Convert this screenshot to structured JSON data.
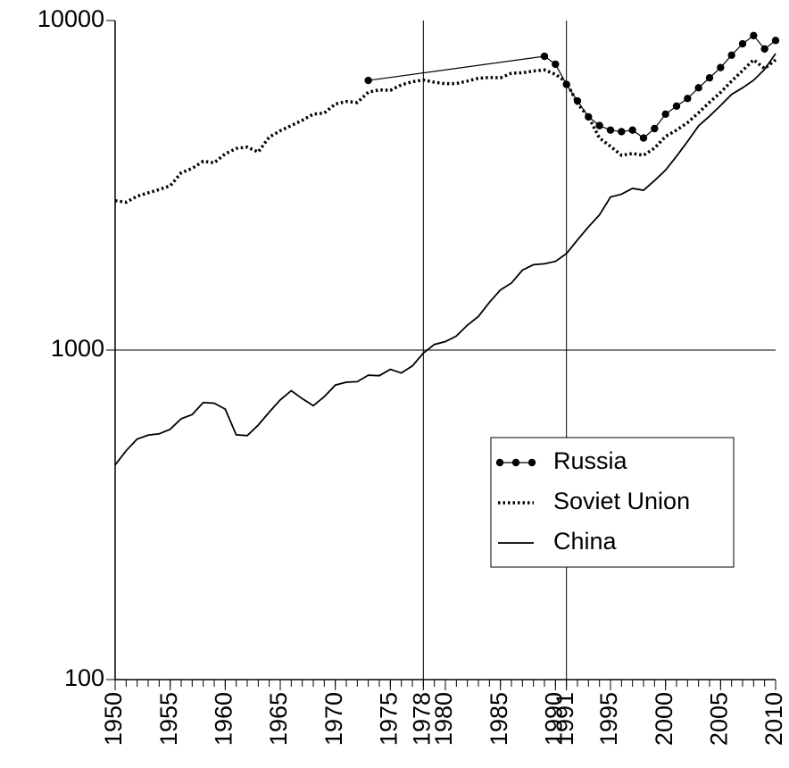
{
  "chart_data": {
    "type": "line",
    "log_y": true,
    "xlim": [
      1950,
      2010
    ],
    "ylim": [
      100,
      10000
    ],
    "xticks": [
      1950,
      1955,
      1960,
      1965,
      1970,
      1975,
      1978,
      1980,
      1985,
      1990,
      1991,
      1995,
      2000,
      2005,
      2010
    ],
    "yticks": [
      100,
      1000,
      10000
    ],
    "vlines": [
      1978,
      1991
    ],
    "hlines": [
      1000
    ],
    "legend": "lower right",
    "series": [
      {
        "name": "Russia",
        "color": "#000000",
        "style": "solid",
        "marker": "circle",
        "x": [
          1973,
          1989,
          1990,
          1991,
          1992,
          1993,
          1994,
          1995,
          1996,
          1997,
          1998,
          1999,
          2000,
          2001,
          2002,
          2003,
          2004,
          2005,
          2006,
          2007,
          2008,
          2009,
          2010
        ],
        "values": [
          6580,
          7790,
          7370,
          6400,
          5700,
          5100,
          4800,
          4650,
          4600,
          4650,
          4400,
          4700,
          5200,
          5500,
          5800,
          6250,
          6700,
          7200,
          7850,
          8500,
          9000,
          8200,
          8700
        ]
      },
      {
        "name": "Soviet Union",
        "color": "#000000",
        "style": "dotted",
        "x": [
          1950,
          1951,
          1952,
          1953,
          1954,
          1955,
          1956,
          1957,
          1958,
          1959,
          1960,
          1961,
          1962,
          1963,
          1964,
          1965,
          1966,
          1967,
          1968,
          1969,
          1970,
          1971,
          1972,
          1973,
          1974,
          1975,
          1976,
          1977,
          1978,
          1979,
          1980,
          1981,
          1982,
          1983,
          1984,
          1985,
          1986,
          1987,
          1988,
          1989,
          1990,
          1991,
          1992,
          1993,
          1994,
          1995,
          1996,
          1997,
          1998,
          1999,
          2000,
          2001,
          2002,
          2003,
          2004,
          2005,
          2006,
          2007,
          2008,
          2009,
          2010
        ],
        "values": [
          2840,
          2810,
          2930,
          3000,
          3070,
          3150,
          3450,
          3560,
          3740,
          3700,
          3940,
          4090,
          4130,
          3990,
          4430,
          4630,
          4800,
          4980,
          5200,
          5240,
          5580,
          5680,
          5640,
          6060,
          6160,
          6140,
          6380,
          6520,
          6600,
          6500,
          6430,
          6440,
          6550,
          6680,
          6720,
          6700,
          6920,
          6940,
          7030,
          7080,
          6870,
          6500,
          5600,
          5100,
          4400,
          4150,
          3900,
          3950,
          3900,
          4100,
          4450,
          4650,
          4900,
          5250,
          5650,
          6050,
          6550,
          7050,
          7600,
          7150,
          7600
        ]
      },
      {
        "name": "China",
        "color": "#000000",
        "style": "solid",
        "x": [
          1950,
          1951,
          1952,
          1953,
          1954,
          1955,
          1956,
          1957,
          1958,
          1959,
          1960,
          1961,
          1962,
          1963,
          1964,
          1965,
          1966,
          1967,
          1968,
          1969,
          1970,
          1971,
          1972,
          1973,
          1974,
          1975,
          1976,
          1977,
          1978,
          1979,
          1980,
          1981,
          1982,
          1983,
          1984,
          1985,
          1986,
          1987,
          1988,
          1989,
          1990,
          1991,
          1992,
          1993,
          1994,
          1995,
          1996,
          1997,
          1998,
          1999,
          2000,
          2001,
          2002,
          2003,
          2004,
          2005,
          2006,
          2007,
          2008,
          2009,
          2010
        ],
        "values": [
          448,
          495,
          537,
          552,
          557,
          575,
          619,
          637,
          693,
          690,
          662,
          553,
          550,
          592,
          648,
          706,
          753,
          712,
          678,
          722,
          783,
          799,
          802,
          839,
          836,
          874,
          852,
          895,
          979,
          1040,
          1061,
          1103,
          1190,
          1265,
          1396,
          1522,
          1597,
          1748,
          1816,
          1827,
          1858,
          1962,
          2158,
          2365,
          2572,
          2913,
          2972,
          3094,
          3055,
          3269,
          3515,
          3875,
          4296,
          4789,
          5127,
          5522,
          5969,
          6250,
          6589,
          7107,
          7940
        ]
      }
    ]
  }
}
